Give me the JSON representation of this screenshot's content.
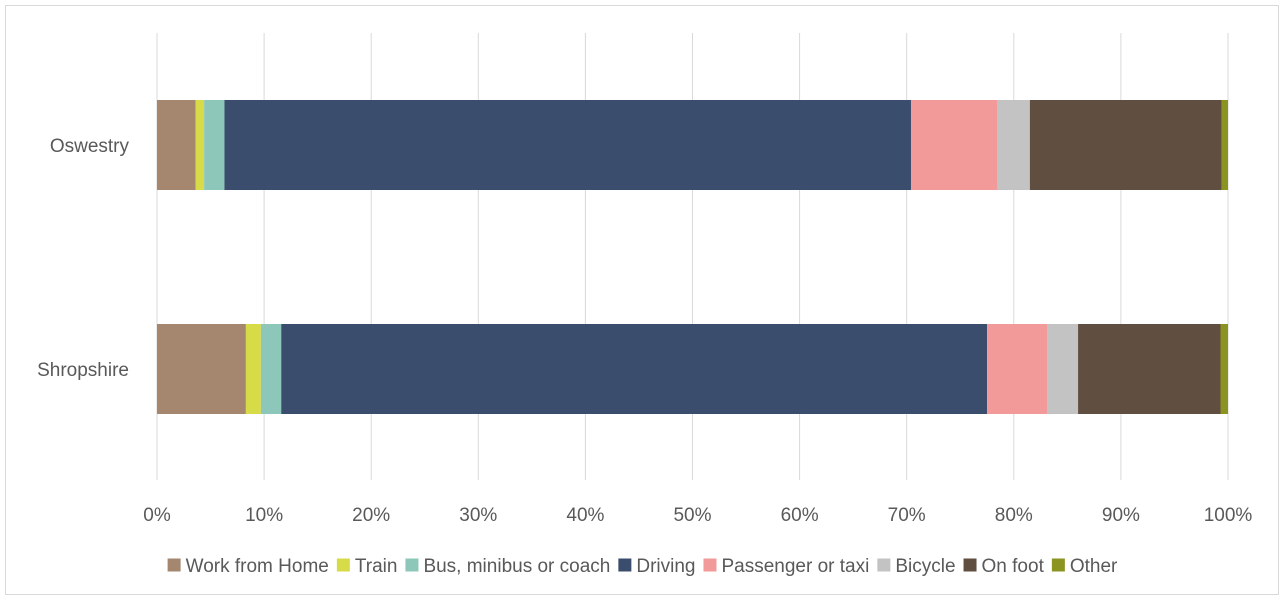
{
  "chart_data": {
    "type": "bar",
    "orientation": "horizontal",
    "stacked": "percent",
    "title": "",
    "xlabel": "",
    "ylabel": "",
    "xlim": [
      0,
      100
    ],
    "x_ticks": [
      "0%",
      "10%",
      "20%",
      "30%",
      "40%",
      "50%",
      "60%",
      "70%",
      "80%",
      "90%",
      "100%"
    ],
    "grid": true,
    "legend_position": "bottom",
    "categories": [
      "Oswestry",
      "Shropshire"
    ],
    "series": [
      {
        "name": "Work from Home",
        "color": "#A5876F",
        "values": [
          3.6,
          8.3
        ]
      },
      {
        "name": "Train",
        "color": "#D8DB48",
        "values": [
          0.8,
          1.4
        ]
      },
      {
        "name": "Bus, minibus or coach",
        "color": "#8CC7B9",
        "values": [
          1.9,
          1.9
        ]
      },
      {
        "name": "Driving",
        "color": "#3A4D6C",
        "values": [
          64.1,
          65.9
        ]
      },
      {
        "name": "Passenger or taxi",
        "color": "#F29A9A",
        "values": [
          8.1,
          5.6
        ]
      },
      {
        "name": "Bicycle",
        "color": "#C3C3C3",
        "values": [
          3.0,
          2.9
        ]
      },
      {
        "name": "On foot",
        "color": "#604E40",
        "values": [
          17.9,
          13.3
        ]
      },
      {
        "name": "Other",
        "color": "#8B9420",
        "values": [
          0.6,
          0.7
        ]
      }
    ]
  }
}
